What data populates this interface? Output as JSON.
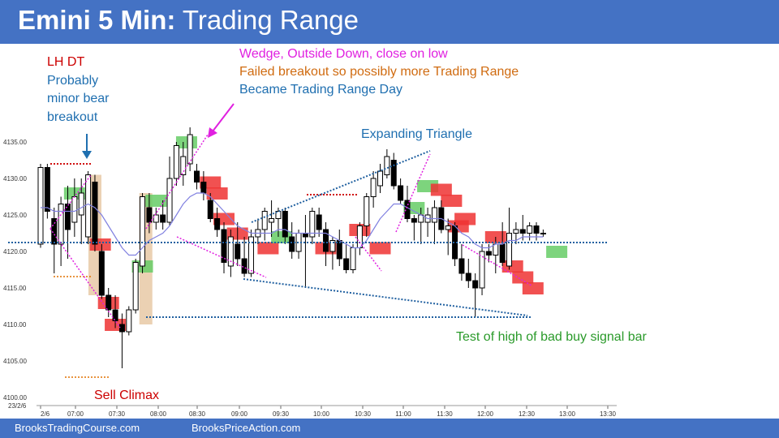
{
  "header": {
    "title_bold": "Emini 5 Min:",
    "title_rest": "Trading Range"
  },
  "footer": {
    "left": "BrooksTradingCourse.com",
    "right": "BrooksPriceAction.com"
  },
  "annotations": {
    "lh_dt": "LH DT",
    "probably": [
      "Probably",
      "minor bear",
      "breakout"
    ],
    "wedge": "Wedge, Outside Down, close on low",
    "failed": "Failed breakout so possibly more Trading Range",
    "became": "Became Trading Range Day",
    "expanding": "Expanding Triangle",
    "sell_climax": "Sell Climax",
    "test": "Test of high of bad buy signal bar",
    "date_label": "23/2/6"
  },
  "colors": {
    "header_bg": "#4472c4",
    "bull": "#ffffff",
    "bear": "#000000",
    "green_box": "#66cc66",
    "red_box": "#ee3333",
    "tan_box": "#e8c9a6",
    "ema": "#8080e0",
    "dotted_blue": "#2060a0",
    "dotted_red": "#d01010",
    "dotted_orange": "#e07000",
    "dotted_magenta": "#e020e0",
    "ann_red": "#cc0000",
    "ann_blue": "#1f6fb0",
    "ann_magenta": "#e020e0",
    "ann_orange": "#d06b10",
    "ann_green": "#2a9a2a"
  },
  "chart_data": {
    "type": "candlestick",
    "y_tick_labels": [
      "4100.00",
      "4105.00",
      "4110.00",
      "4115.00",
      "4120.00",
      "4125.00",
      "4130.00",
      "4135.00"
    ],
    "x_tick_labels": [
      "2/6",
      "07:00",
      "07:30",
      "08:00",
      "08:30",
      "09:00",
      "09:30",
      "10:00",
      "10:30",
      "11:00",
      "11:30",
      "12:00",
      "12:30",
      "13:00",
      "13:30"
    ],
    "ylim": [
      4099,
      4138
    ],
    "bars": [
      {
        "o": 4121,
        "h": 4132,
        "l": 4120.5,
        "c": 4131.5
      },
      {
        "o": 4131.5,
        "h": 4132,
        "l": 4124.5,
        "c": 4125.5
      },
      {
        "o": 4124.5,
        "h": 4126,
        "l": 4117,
        "c": 4121
      },
      {
        "o": 4121,
        "h": 4127.5,
        "l": 4118,
        "c": 4126.5
      },
      {
        "o": 4126.5,
        "h": 4129,
        "l": 4119,
        "c": 4123
      },
      {
        "o": 4124,
        "h": 4130,
        "l": 4122,
        "c": 4127.5
      },
      {
        "o": 4125,
        "h": 4130,
        "l": 4121,
        "c": 4128
      },
      {
        "o": 4122,
        "h": 4131,
        "l": 4121,
        "c": 4130.5
      },
      {
        "o": 4129.5,
        "h": 4130.5,
        "l": 4120,
        "c": 4121
      },
      {
        "o": 4120,
        "h": 4121,
        "l": 4113.5,
        "c": 4114
      },
      {
        "o": 4114,
        "h": 4115,
        "l": 4111,
        "c": 4112
      },
      {
        "o": 4112,
        "h": 4114,
        "l": 4109.5,
        "c": 4110.5
      },
      {
        "o": 4110,
        "h": 4111.5,
        "l": 4104,
        "c": 4109
      },
      {
        "o": 4109,
        "h": 4112.5,
        "l": 4108.5,
        "c": 4112
      },
      {
        "o": 4112,
        "h": 4119,
        "l": 4111.5,
        "c": 4118.5
      },
      {
        "o": 4118,
        "h": 4128,
        "l": 4117,
        "c": 4127.5
      },
      {
        "o": 4126,
        "h": 4128,
        "l": 4122.5,
        "c": 4124
      },
      {
        "o": 4124,
        "h": 4126,
        "l": 4123,
        "c": 4125
      },
      {
        "o": 4125,
        "h": 4127,
        "l": 4123,
        "c": 4124
      },
      {
        "o": 4124,
        "h": 4133,
        "l": 4123.5,
        "c": 4130
      },
      {
        "o": 4130,
        "h": 4135,
        "l": 4129,
        "c": 4134.5
      },
      {
        "o": 4130.5,
        "h": 4135,
        "l": 4129,
        "c": 4133
      },
      {
        "o": 4132,
        "h": 4137,
        "l": 4131,
        "c": 4136
      },
      {
        "o": 4131,
        "h": 4132,
        "l": 4128.5,
        "c": 4129.5
      },
      {
        "o": 4129.5,
        "h": 4131,
        "l": 4127,
        "c": 4128
      },
      {
        "o": 4127,
        "h": 4128,
        "l": 4124,
        "c": 4124.5
      },
      {
        "o": 4124.5,
        "h": 4126,
        "l": 4122,
        "c": 4123
      },
      {
        "o": 4123,
        "h": 4124,
        "l": 4117,
        "c": 4118.5
      },
      {
        "o": 4118,
        "h": 4123,
        "l": 4116.5,
        "c": 4122
      },
      {
        "o": 4121,
        "h": 4124,
        "l": 4118,
        "c": 4119
      },
      {
        "o": 4119,
        "h": 4122,
        "l": 4116.5,
        "c": 4117
      },
      {
        "o": 4117,
        "h": 4123,
        "l": 4116.5,
        "c": 4122
      },
      {
        "o": 4122,
        "h": 4124.5,
        "l": 4121,
        "c": 4123
      },
      {
        "o": 4123,
        "h": 4126,
        "l": 4121.5,
        "c": 4125.5
      },
      {
        "o": 4124,
        "h": 4127,
        "l": 4122,
        "c": 4124.5
      },
      {
        "o": 4124.5,
        "h": 4126,
        "l": 4122,
        "c": 4125.5
      },
      {
        "o": 4125.5,
        "h": 4126,
        "l": 4121,
        "c": 4122
      },
      {
        "o": 4122,
        "h": 4124,
        "l": 4119,
        "c": 4120
      },
      {
        "o": 4120,
        "h": 4123,
        "l": 4119,
        "c": 4122.5
      },
      {
        "o": 4122.5,
        "h": 4125,
        "l": 4115,
        "c": 4122
      },
      {
        "o": 4122,
        "h": 4126,
        "l": 4121,
        "c": 4125.5
      },
      {
        "o": 4125,
        "h": 4126,
        "l": 4122,
        "c": 4123
      },
      {
        "o": 4123,
        "h": 4124,
        "l": 4118,
        "c": 4120
      },
      {
        "o": 4120,
        "h": 4122,
        "l": 4117.5,
        "c": 4121.5
      },
      {
        "o": 4121.5,
        "h": 4123,
        "l": 4118,
        "c": 4119
      },
      {
        "o": 4119,
        "h": 4121,
        "l": 4117,
        "c": 4117.5
      },
      {
        "o": 4117.5,
        "h": 4121,
        "l": 4117,
        "c": 4120.5
      },
      {
        "o": 4120.5,
        "h": 4124,
        "l": 4119.5,
        "c": 4123.5
      },
      {
        "o": 4123.5,
        "h": 4128,
        "l": 4122,
        "c": 4127.5
      },
      {
        "o": 4127.5,
        "h": 4131,
        "l": 4126,
        "c": 4130
      },
      {
        "o": 4129,
        "h": 4132,
        "l": 4128,
        "c": 4131
      },
      {
        "o": 4130.5,
        "h": 4134,
        "l": 4130,
        "c": 4133
      },
      {
        "o": 4132.5,
        "h": 4133.5,
        "l": 4128.5,
        "c": 4129
      },
      {
        "o": 4129,
        "h": 4130,
        "l": 4126.5,
        "c": 4127
      },
      {
        "o": 4127,
        "h": 4129,
        "l": 4124,
        "c": 4124.5
      },
      {
        "o": 4124.5,
        "h": 4125,
        "l": 4121.5,
        "c": 4124
      },
      {
        "o": 4124,
        "h": 4126,
        "l": 4121,
        "c": 4125
      },
      {
        "o": 4124,
        "h": 4126,
        "l": 4122,
        "c": 4125
      },
      {
        "o": 4124,
        "h": 4127,
        "l": 4121,
        "c": 4126
      },
      {
        "o": 4126,
        "h": 4127,
        "l": 4122.5,
        "c": 4123
      },
      {
        "o": 4123,
        "h": 4124.5,
        "l": 4119.5,
        "c": 4123.5
      },
      {
        "o": 4123.5,
        "h": 4124,
        "l": 4118,
        "c": 4119
      },
      {
        "o": 4119,
        "h": 4121,
        "l": 4116,
        "c": 4117
      },
      {
        "o": 4117,
        "h": 4119,
        "l": 4115,
        "c": 4116
      },
      {
        "o": 4116,
        "h": 4117,
        "l": 4111,
        "c": 4115
      },
      {
        "o": 4115,
        "h": 4121,
        "l": 4114,
        "c": 4120
      },
      {
        "o": 4120,
        "h": 4121,
        "l": 4118.5,
        "c": 4119.5
      },
      {
        "o": 4119.5,
        "h": 4122,
        "l": 4117,
        "c": 4121
      },
      {
        "o": 4121,
        "h": 4124,
        "l": 4118,
        "c": 4118.5
      },
      {
        "o": 4118,
        "h": 4126,
        "l": 4117.5,
        "c": 4122.5
      },
      {
        "o": 4122.5,
        "h": 4124,
        "l": 4121,
        "c": 4123
      },
      {
        "o": 4123,
        "h": 4125,
        "l": 4121.5,
        "c": 4122.5
      },
      {
        "o": 4122.5,
        "h": 4124,
        "l": 4121.5,
        "c": 4123.5
      },
      {
        "o": 4123.5,
        "h": 4124,
        "l": 4121.5,
        "c": 4122.5
      },
      {
        "o": 4122.5,
        "h": 4123,
        "l": 4122,
        "c": 4122.5
      }
    ],
    "ema": [
      4126,
      4126,
      4125.5,
      4125.5,
      4125.5,
      4125.5,
      4126,
      4126.5,
      4126,
      4125,
      4123.5,
      4122,
      4120.5,
      4119.5,
      4119.5,
      4120.5,
      4121.5,
      4122,
      4122.5,
      4123.5,
      4125,
      4126.5,
      4127.5,
      4128,
      4128,
      4127.5,
      4126.5,
      4125.5,
      4124.5,
      4123.5,
      4123,
      4122.5,
      4122.5,
      4122.5,
      4122.5,
      4123,
      4123,
      4122.5,
      4122.5,
      4122.5,
      4122.5,
      4122.5,
      4122.5,
      4122,
      4121.5,
      4121,
      4120.5,
      4120.5,
      4121.5,
      4123,
      4124.5,
      4125.5,
      4126.5,
      4126.5,
      4126,
      4125.5,
      4125,
      4124.5,
      4124.5,
      4124.5,
      4124,
      4123.5,
      4122.5,
      4122,
      4121,
      4120.5,
      4120.5,
      4121,
      4121,
      4121.5,
      4121.5,
      4122,
      4122,
      4122,
      4122
    ]
  }
}
